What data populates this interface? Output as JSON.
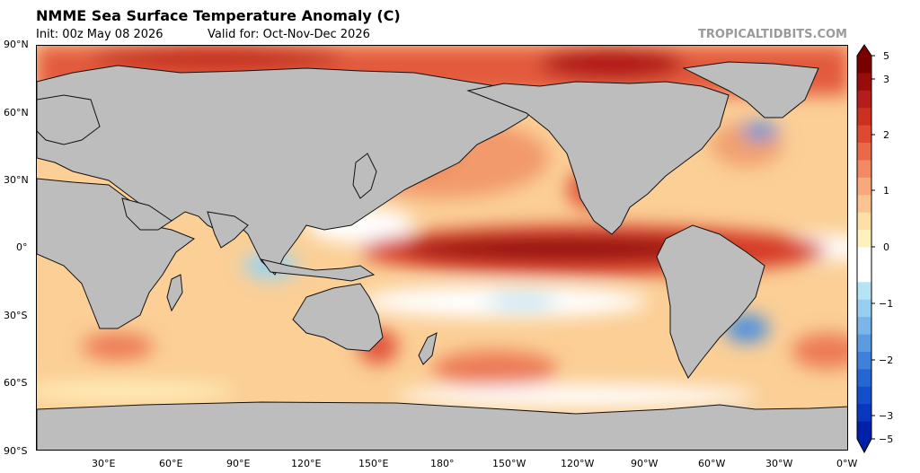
{
  "title": "NMME Sea Surface Temperature Anomaly (C)",
  "init_text": "Init: 00z May 08 2026",
  "valid_text": "Valid for: Oct-Nov-Dec 2026",
  "credit": "TROPICALTIDBITS.COM",
  "lat_labels": [
    "90°N",
    "60°N",
    "30°N",
    "0°",
    "30°S",
    "60°S",
    "90°S"
  ],
  "lon_labels": [
    "30°E",
    "60°E",
    "90°E",
    "120°E",
    "150°E",
    "180°",
    "150°W",
    "120°W",
    "90°W",
    "60°W",
    "30°W",
    "0°W"
  ],
  "colorbar": {
    "labels": [
      "5",
      "3",
      "2",
      "1",
      "0",
      "−1",
      "−2",
      "−3",
      "−5"
    ],
    "values": [
      5,
      3,
      2,
      1,
      0,
      -1,
      -2,
      -3,
      -5
    ],
    "colors": [
      "#7a0000",
      "#9a0b0b",
      "#b51c1c",
      "#cc3020",
      "#de4a30",
      "#ea6a48",
      "#f38a63",
      "#f9a87e",
      "#fbc392",
      "#fde0a6",
      "#fff1bd",
      "#ffffff",
      "#ffffff",
      "#b7e3f5",
      "#98cff0",
      "#7ab6ea",
      "#5c9be2",
      "#4080da",
      "#2566d2",
      "#134ecb",
      "#0738bf",
      "#0020a8"
    ]
  },
  "colors": {
    "land": "#bdbdbd",
    "neutral_ocean": "#fbcf96",
    "warm": "#e6553a",
    "strong_warm": "#8f0707",
    "cool": "#9ad3f2",
    "white": "#ffffff"
  }
}
